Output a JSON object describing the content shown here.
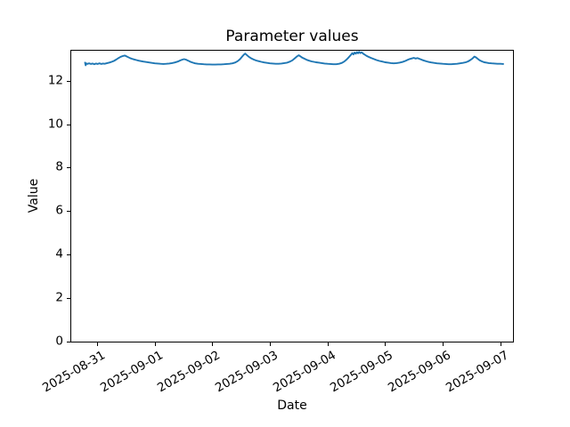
{
  "chart_data": {
    "type": "line",
    "title": "Parameter values",
    "xlabel": "Date",
    "ylabel": "Value",
    "line_color": "#1f77b4",
    "legend": "none",
    "grid": false,
    "x_unit": "days from 2025-08-31",
    "x_tick_days": [
      0,
      1,
      2,
      3,
      4,
      5,
      6,
      7
    ],
    "x_tick_labels": [
      "2025-08-31",
      "2025-09-01",
      "2025-09-02",
      "2025-09-03",
      "2025-09-04",
      "2025-09-05",
      "2025-09-06",
      "2025-09-07"
    ],
    "y_ticks": [
      0,
      2,
      4,
      6,
      8,
      10,
      12
    ],
    "ylim": [
      0,
      13.38
    ],
    "xlim_days": [
      -0.45,
      7.22
    ],
    "points": [
      [
        -0.21,
        12.83
      ],
      [
        -0.2,
        12.71
      ],
      [
        -0.19,
        12.8
      ],
      [
        -0.17,
        12.77
      ],
      [
        -0.14,
        12.8
      ],
      [
        -0.11,
        12.77
      ],
      [
        -0.08,
        12.79
      ],
      [
        -0.05,
        12.76
      ],
      [
        -0.02,
        12.79
      ],
      [
        0.01,
        12.77
      ],
      [
        0.04,
        12.8
      ],
      [
        0.07,
        12.77
      ],
      [
        0.1,
        12.79
      ],
      [
        0.13,
        12.78
      ],
      [
        0.16,
        12.8
      ],
      [
        0.19,
        12.82
      ],
      [
        0.22,
        12.84
      ],
      [
        0.25,
        12.87
      ],
      [
        0.29,
        12.91
      ],
      [
        0.33,
        12.97
      ],
      [
        0.37,
        13.04
      ],
      [
        0.41,
        13.1
      ],
      [
        0.45,
        13.14
      ],
      [
        0.48,
        13.16
      ],
      [
        0.51,
        13.12
      ],
      [
        0.54,
        13.08
      ],
      [
        0.57,
        13.04
      ],
      [
        0.6,
        13.01
      ],
      [
        0.64,
        12.98
      ],
      [
        0.68,
        12.95
      ],
      [
        0.72,
        12.92
      ],
      [
        0.76,
        12.9
      ],
      [
        0.8,
        12.88
      ],
      [
        0.85,
        12.86
      ],
      [
        0.9,
        12.84
      ],
      [
        0.95,
        12.82
      ],
      [
        1.0,
        12.8
      ],
      [
        1.05,
        12.79
      ],
      [
        1.1,
        12.78
      ],
      [
        1.15,
        12.77
      ],
      [
        1.2,
        12.78
      ],
      [
        1.25,
        12.79
      ],
      [
        1.3,
        12.81
      ],
      [
        1.35,
        12.84
      ],
      [
        1.4,
        12.88
      ],
      [
        1.44,
        12.93
      ],
      [
        1.48,
        12.97
      ],
      [
        1.51,
        12.99
      ],
      [
        1.54,
        12.97
      ],
      [
        1.58,
        12.92
      ],
      [
        1.62,
        12.87
      ],
      [
        1.66,
        12.83
      ],
      [
        1.7,
        12.8
      ],
      [
        1.75,
        12.78
      ],
      [
        1.8,
        12.77
      ],
      [
        1.85,
        12.76
      ],
      [
        1.9,
        12.75
      ],
      [
        1.95,
        12.75
      ],
      [
        2.0,
        12.74
      ],
      [
        2.05,
        12.74
      ],
      [
        2.1,
        12.75
      ],
      [
        2.15,
        12.75
      ],
      [
        2.2,
        12.76
      ],
      [
        2.25,
        12.77
      ],
      [
        2.3,
        12.78
      ],
      [
        2.35,
        12.8
      ],
      [
        2.4,
        12.84
      ],
      [
        2.44,
        12.9
      ],
      [
        2.48,
        12.99
      ],
      [
        2.52,
        13.12
      ],
      [
        2.55,
        13.21
      ],
      [
        2.57,
        13.25
      ],
      [
        2.59,
        13.2
      ],
      [
        2.62,
        13.13
      ],
      [
        2.65,
        13.07
      ],
      [
        2.68,
        13.02
      ],
      [
        2.72,
        12.97
      ],
      [
        2.76,
        12.93
      ],
      [
        2.8,
        12.9
      ],
      [
        2.85,
        12.87
      ],
      [
        2.9,
        12.84
      ],
      [
        2.95,
        12.82
      ],
      [
        3.0,
        12.8
      ],
      [
        3.05,
        12.79
      ],
      [
        3.1,
        12.78
      ],
      [
        3.15,
        12.78
      ],
      [
        3.2,
        12.79
      ],
      [
        3.25,
        12.81
      ],
      [
        3.3,
        12.83
      ],
      [
        3.35,
        12.88
      ],
      [
        3.39,
        12.94
      ],
      [
        3.43,
        13.03
      ],
      [
        3.47,
        13.12
      ],
      [
        3.5,
        13.17
      ],
      [
        3.53,
        13.12
      ],
      [
        3.56,
        13.06
      ],
      [
        3.6,
        13.01
      ],
      [
        3.64,
        12.96
      ],
      [
        3.68,
        12.92
      ],
      [
        3.72,
        12.89
      ],
      [
        3.76,
        12.87
      ],
      [
        3.8,
        12.85
      ],
      [
        3.85,
        12.83
      ],
      [
        3.9,
        12.81
      ],
      [
        3.95,
        12.79
      ],
      [
        4.0,
        12.78
      ],
      [
        4.05,
        12.77
      ],
      [
        4.1,
        12.76
      ],
      [
        4.15,
        12.76
      ],
      [
        4.2,
        12.78
      ],
      [
        4.25,
        12.82
      ],
      [
        4.29,
        12.88
      ],
      [
        4.33,
        12.97
      ],
      [
        4.37,
        13.08
      ],
      [
        4.4,
        13.17
      ],
      [
        4.43,
        13.27
      ],
      [
        4.45,
        13.21
      ],
      [
        4.47,
        13.3
      ],
      [
        4.49,
        13.24
      ],
      [
        4.51,
        13.32
      ],
      [
        4.53,
        13.26
      ],
      [
        4.55,
        13.33
      ],
      [
        4.57,
        13.27
      ],
      [
        4.59,
        13.31
      ],
      [
        4.62,
        13.24
      ],
      [
        4.65,
        13.19
      ],
      [
        4.68,
        13.14
      ],
      [
        4.72,
        13.09
      ],
      [
        4.76,
        13.04
      ],
      [
        4.8,
        13.0
      ],
      [
        4.85,
        12.95
      ],
      [
        4.9,
        12.91
      ],
      [
        4.95,
        12.88
      ],
      [
        5.0,
        12.85
      ],
      [
        5.05,
        12.83
      ],
      [
        5.1,
        12.81
      ],
      [
        5.15,
        12.8
      ],
      [
        5.2,
        12.81
      ],
      [
        5.25,
        12.83
      ],
      [
        5.3,
        12.86
      ],
      [
        5.35,
        12.91
      ],
      [
        5.39,
        12.96
      ],
      [
        5.43,
        13.0
      ],
      [
        5.47,
        13.03
      ],
      [
        5.5,
        13.05
      ],
      [
        5.53,
        13.02
      ],
      [
        5.56,
        13.04
      ],
      [
        5.6,
        13.0
      ],
      [
        5.64,
        12.96
      ],
      [
        5.68,
        12.92
      ],
      [
        5.72,
        12.89
      ],
      [
        5.76,
        12.86
      ],
      [
        5.8,
        12.84
      ],
      [
        5.85,
        12.82
      ],
      [
        5.9,
        12.8
      ],
      [
        5.95,
        12.79
      ],
      [
        6.0,
        12.78
      ],
      [
        6.05,
        12.77
      ],
      [
        6.1,
        12.76
      ],
      [
        6.15,
        12.76
      ],
      [
        6.2,
        12.77
      ],
      [
        6.25,
        12.78
      ],
      [
        6.3,
        12.8
      ],
      [
        6.35,
        12.82
      ],
      [
        6.4,
        12.85
      ],
      [
        6.44,
        12.89
      ],
      [
        6.48,
        12.95
      ],
      [
        6.52,
        13.03
      ],
      [
        6.55,
        13.11
      ],
      [
        6.58,
        13.07
      ],
      [
        6.61,
        13.0
      ],
      [
        6.64,
        12.94
      ],
      [
        6.68,
        12.89
      ],
      [
        6.72,
        12.85
      ],
      [
        6.76,
        12.83
      ],
      [
        6.8,
        12.81
      ],
      [
        6.85,
        12.8
      ],
      [
        6.9,
        12.79
      ],
      [
        6.95,
        12.78
      ],
      [
        7.0,
        12.78
      ],
      [
        7.05,
        12.77
      ]
    ]
  }
}
